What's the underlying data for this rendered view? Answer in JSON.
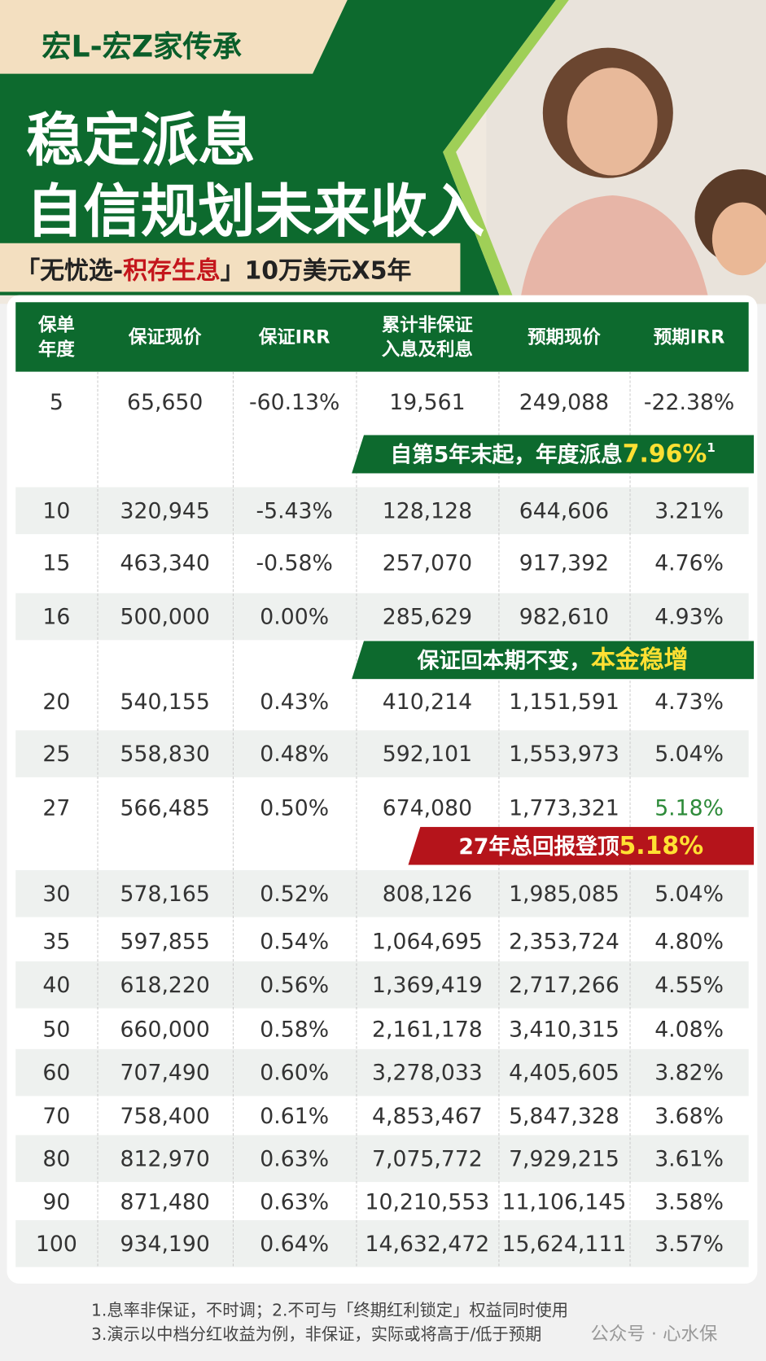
{
  "header": {
    "tag": "宏L-宏Z家传承",
    "title_line1": "稳定派息",
    "title_line2": "自信规划未来收入",
    "subtitle_pre": "「无忧选-",
    "subtitle_highlight": "积存生息",
    "subtitle_post": "」10万美元X5年"
  },
  "table": {
    "headers": [
      "保单\n年度",
      "保证现价",
      "保证IRR",
      "累计非保证\n入息及利息",
      "预期现价",
      "预期IRR"
    ],
    "rows": [
      [
        "5",
        "65,650",
        "-60.13%",
        "19,561",
        "249,088",
        "-22.38%"
      ],
      [
        "10",
        "320,945",
        "-5.43%",
        "128,128",
        "644,606",
        "3.21%"
      ],
      [
        "15",
        "463,340",
        "-0.58%",
        "257,070",
        "917,392",
        "4.76%"
      ],
      [
        "16",
        "500,000",
        "0.00%",
        "285,629",
        "982,610",
        "4.93%"
      ],
      [
        "20",
        "540,155",
        "0.43%",
        "410,214",
        "1,151,591",
        "4.73%"
      ],
      [
        "25",
        "558,830",
        "0.48%",
        "592,101",
        "1,553,973",
        "5.04%"
      ],
      [
        "27",
        "566,485",
        "0.50%",
        "674,080",
        "1,773,321",
        "5.18%"
      ],
      [
        "30",
        "578,165",
        "0.52%",
        "808,126",
        "1,985,085",
        "5.04%"
      ],
      [
        "35",
        "597,855",
        "0.54%",
        "1,064,695",
        "2,353,724",
        "4.80%"
      ],
      [
        "40",
        "618,220",
        "0.56%",
        "1,369,419",
        "2,717,266",
        "4.55%"
      ],
      [
        "50",
        "660,000",
        "0.58%",
        "2,161,178",
        "3,410,315",
        "4.08%"
      ],
      [
        "60",
        "707,490",
        "0.60%",
        "3,278,033",
        "4,405,605",
        "3.82%"
      ],
      [
        "70",
        "758,400",
        "0.61%",
        "4,853,467",
        "5,847,328",
        "3.68%"
      ],
      [
        "80",
        "812,970",
        "0.63%",
        "7,075,772",
        "7,929,215",
        "3.61%"
      ],
      [
        "90",
        "871,480",
        "0.63%",
        "10,210,553",
        "11,106,145",
        "3.58%"
      ],
      [
        "100",
        "934,190",
        "0.64%",
        "14,632,472",
        "15,624,111",
        "3.57%"
      ]
    ]
  },
  "banners": [
    {
      "text": "自第5年末起，年度派息",
      "highlight": "7.96%",
      "sup": "1"
    },
    {
      "text": "保证回本期不变，",
      "highlight": "本金稳增"
    },
    {
      "text": "27年总回报登顶",
      "highlight": "5.18%"
    }
  ],
  "footnotes": [
    "1.息率非保证，不时调；2.不可与「终期红利锁定」权益同时使用",
    "3.演示以中档分红收益为例，非保证，实际或将高于/低于预期"
  ],
  "watermark": "公众号 · 心水保"
}
